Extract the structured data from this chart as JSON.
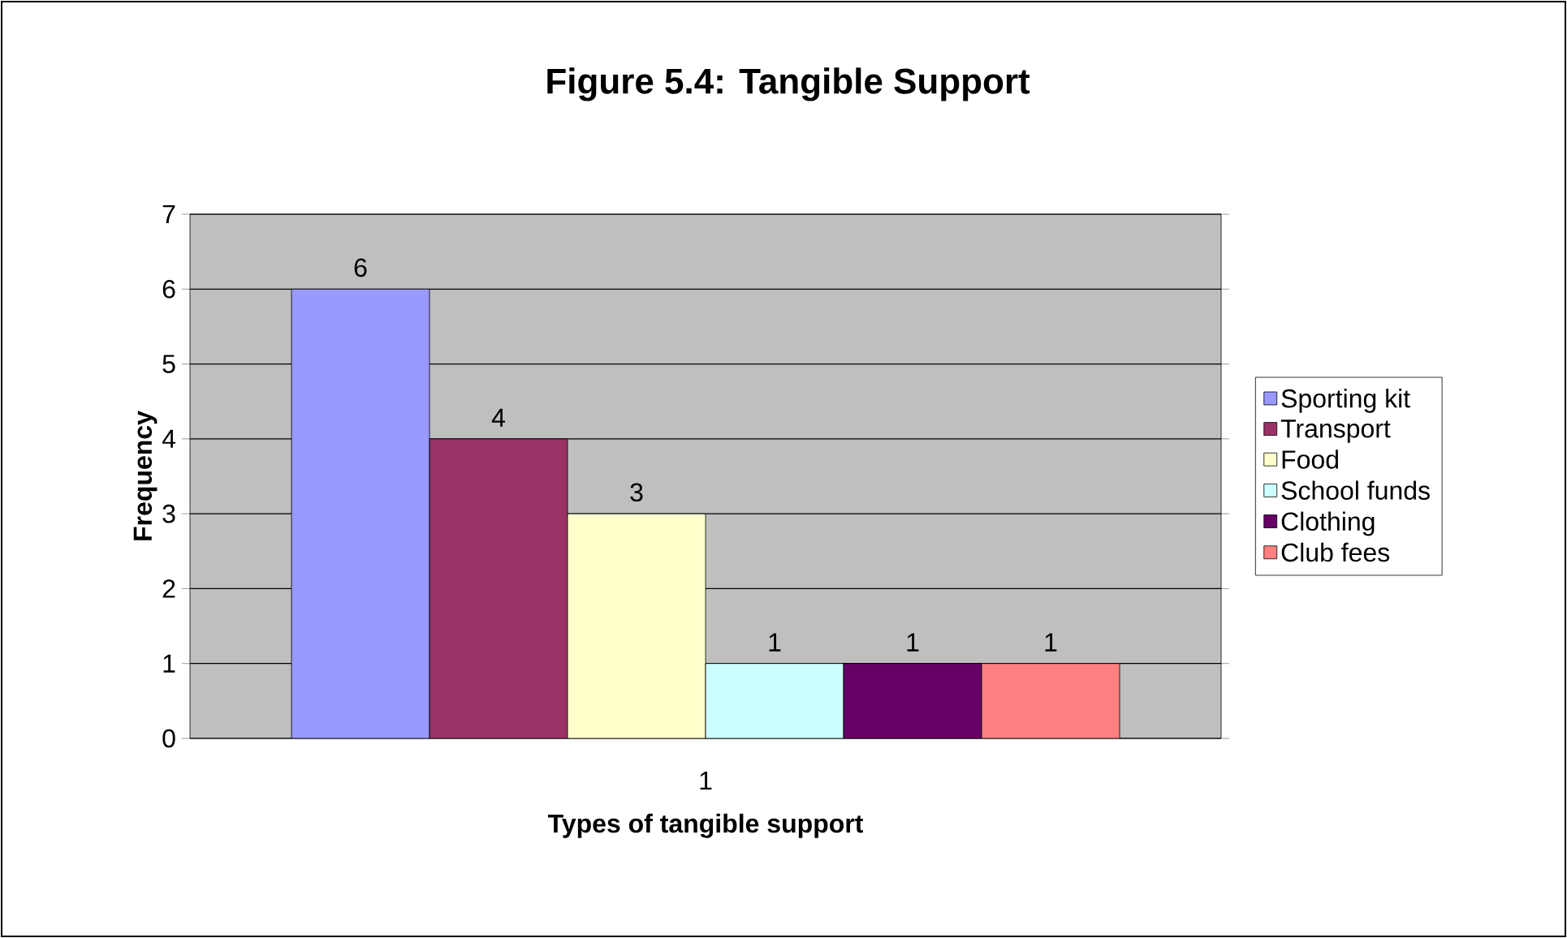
{
  "chart_data": {
    "type": "bar",
    "title": "Figure 5.4: Tangible Support",
    "xlabel": "Types of tangible support",
    "ylabel": "Frequency",
    "categories": [
      "1"
    ],
    "series": [
      {
        "name": "Sporting kit",
        "color": "#9999ff",
        "values": [
          6
        ]
      },
      {
        "name": "Transport",
        "color": "#993366",
        "values": [
          4
        ]
      },
      {
        "name": "Food",
        "color": "#ffffcc",
        "values": [
          3
        ]
      },
      {
        "name": "School funds",
        "color": "#ccffff",
        "values": [
          1
        ]
      },
      {
        "name": "Clothing",
        "color": "#660066",
        "values": [
          1
        ]
      },
      {
        "name": "Club fees",
        "color": "#ff8080",
        "values": [
          1
        ]
      }
    ],
    "ylim": [
      0,
      7
    ],
    "yticks": [
      0,
      1,
      2,
      3,
      4,
      5,
      6,
      7
    ],
    "grid": "y",
    "legend": "right",
    "data_labels": true
  }
}
